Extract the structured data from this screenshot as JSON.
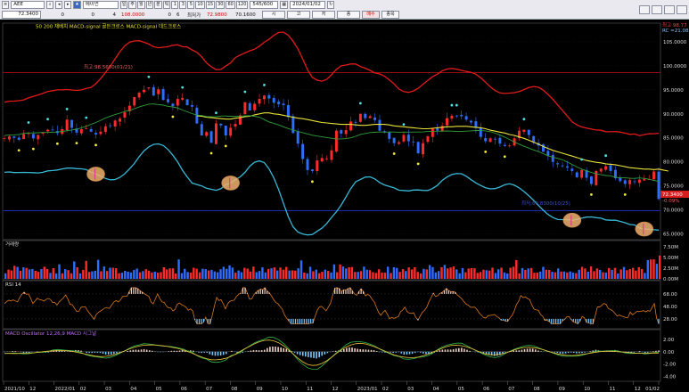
{
  "toolbar": {
    "symbol_code": "AEE",
    "symbol_name": "에이먼",
    "period_buttons": [
      "일",
      "주",
      "월",
      "년",
      "분",
      "틱",
      "1",
      "3",
      "5",
      "10",
      "15",
      "30",
      "60",
      "120"
    ],
    "count_value": "545/600",
    "date_value": "2024/01/02",
    "last_price": "72.3400",
    "change": "0",
    "volume_label": "0",
    "qty": "4",
    "open_price": "108.0000",
    "high_label": "0",
    "high_flag": "6",
    "low_label": "최저가",
    "low_price": "72.9800",
    "close_price": "70.1600",
    "btn_si": "시",
    "btn_go": "고",
    "btn_jeo": "저",
    "btn_close": "종",
    "btn_order": "매수",
    "btn_analysis": "종목"
  },
  "legend": {
    "top_line": "50  200  재배치  MACD-signal 골든크로스  MACD-signal 데드크로스",
    "resistance_label": "최고:98.5600(01/21)",
    "support_label": "최저:69.8300(10/25)",
    "volume_title": "거래량",
    "rsi_title": "RSI 14",
    "macd_title": "MACD Oscillator 12,26,9  MACD  시그널"
  },
  "price_axis": {
    "ticks": [
      "105.0000",
      "100.0000",
      "95.0000",
      "90.0000",
      "85.0000",
      "80.0000",
      "75.0000",
      "70.0000",
      "65.0000"
    ],
    "current_tag": "72.3400",
    "current_pct": "-0.09%",
    "corner_a": "최고 98.77",
    "corner_b": "RC =21.08"
  },
  "volume_axis": {
    "ticks": [
      "7.50M",
      "5.00M",
      "2.50M",
      "0.00M"
    ]
  },
  "rsi_axis": {
    "ticks": [
      "68.00",
      "48.00",
      "28.00"
    ]
  },
  "macd_axis": {
    "ticks": [
      "2.00",
      "0.00",
      "-2.00",
      "-4.00"
    ]
  },
  "x_axis": {
    "labels": [
      "2021/10",
      "12",
      "2022/01",
      "02",
      "03",
      "04",
      "05",
      "06",
      "07",
      "08",
      "09",
      "10",
      "11",
      "12",
      "2023/01",
      "02",
      "03",
      "04",
      "05",
      "06",
      "07",
      "08",
      "09",
      "10",
      "11",
      "12",
      "01/02"
    ]
  },
  "colors": {
    "bg": "#000000",
    "up_candle": "#ff2b2b",
    "down_candle": "#2f6dff",
    "upper_band": "#e21a1a",
    "lower_band": "#37b8d6",
    "ma_yellow": "#e7e13a",
    "ma_green": "#2f9e3a",
    "resistance": "#c2121a",
    "support": "#2030c8",
    "rsi_line": "#d9781f",
    "macd_line": "#2fb84a",
    "signal_line": "#e8c23a",
    "highlight": "#f0b070"
  },
  "chart_data": {
    "type": "line",
    "title": "AEE",
    "x_start": "2021/10",
    "x_end": "2024/01/02",
    "price": {
      "closes": [
        84.9,
        85.3,
        85.0,
        84.6,
        85.8,
        86.0,
        84.9,
        85.6,
        86.1,
        86.7,
        86.6,
        86.0,
        86.8,
        88.8,
        87.1,
        86.1,
        86.8,
        87.0,
        86.3,
        85.7,
        86.3,
        87.4,
        87.5,
        88.6,
        89.0,
        90.3,
        91.7,
        93.5,
        94.4,
        95.0,
        95.5,
        93.8,
        95.1,
        92.9,
        92.4,
        91.6,
        93.1,
        93.3,
        91.8,
        91.5,
        88.0,
        85.5,
        86.2,
        84.0,
        88.0,
        87.6,
        85.5,
        87.1,
        87.9,
        89.7,
        92.4,
        90.7,
        92.1,
        93.1,
        93.8,
        93.2,
        92.3,
        92.0,
        91.8,
        89.3,
        86.0,
        83.8,
        80.6,
        78.3,
        78.1,
        80.3,
        80.8,
        80.7,
        82.4,
        86.5,
        85.9,
        86.6,
        88.4,
        88.3,
        90.0,
        89.1,
        89.5,
        88.7,
        86.5,
        86.4,
        84.8,
        83.9,
        84.1,
        85.6,
        84.3,
        84.2,
        81.8,
        83.9,
        85.3,
        86.9,
        86.5,
        87.5,
        89.1,
        89.6,
        89.6,
        89.5,
        88.8,
        88.2,
        87.1,
        85.2,
        84.3,
        84.9,
        84.8,
        83.8,
        83.3,
        83.4,
        84.9,
        86.5,
        86.7,
        85.6,
        84.0,
        83.4,
        82.1,
        81.3,
        80.0,
        79.5,
        79.2,
        78.8,
        78.1,
        76.8,
        78.3,
        76.7,
        75.4,
        78.1,
        78.6,
        79.1,
        78.1,
        76.6,
        76.0,
        75.4,
        76.2,
        75.8,
        76.3,
        76.4,
        76.4,
        78.0,
        72.3
      ],
      "ma_yellow": [
        null,
        null,
        null,
        null,
        null,
        null,
        null,
        null,
        null,
        null,
        null,
        null,
        null,
        null,
        null,
        null,
        null,
        null,
        null,
        null,
        null,
        null,
        null,
        null,
        null,
        null,
        null,
        null,
        null,
        null,
        null,
        null,
        null,
        null,
        null,
        null,
        null,
        null,
        null,
        null,
        89.6,
        89.5,
        89.3,
        89.2,
        89.1,
        89.0,
        88.9,
        88.9,
        89.1,
        89.2,
        89.4,
        89.5,
        89.8,
        90.0,
        90.2,
        90.2,
        90.0,
        89.9,
        89.7,
        89.5,
        89.3,
        89.1,
        89.0,
        88.8,
        88.6,
        88.4,
        88.2,
        88.1,
        88.0,
        87.9,
        87.8,
        87.8,
        87.8,
        87.7,
        87.6,
        87.6,
        87.7,
        87.8,
        87.8,
        87.8,
        87.7,
        87.5,
        87.4,
        87.3,
        87.2,
        87.1,
        87.0,
        86.9,
        86.9,
        87.0,
        87.1,
        87.2,
        87.3,
        87.3,
        87.4,
        87.4,
        87.4,
        87.3,
        87.2,
        87.1,
        86.9,
        86.6,
        86.4,
        86.2,
        86.0,
        85.7,
        85.5,
        85.2,
        84.9,
        84.5,
        84.1,
        83.7,
        83.2,
        82.8,
        82.4,
        82.1,
        81.8,
        81.5,
        81.2,
        80.9,
        80.6,
        80.3,
        80.1,
        79.9,
        79.8,
        79.6,
        79.5,
        79.4,
        79.2,
        79.0,
        78.8,
        78.7,
        78.6,
        78.5,
        78.5,
        78.4,
        78.5,
        78.3,
        78.1
      ],
      "resistance": 98.56,
      "support": 69.83,
      "ylim": [
        64.0,
        108.5
      ]
    }
  }
}
